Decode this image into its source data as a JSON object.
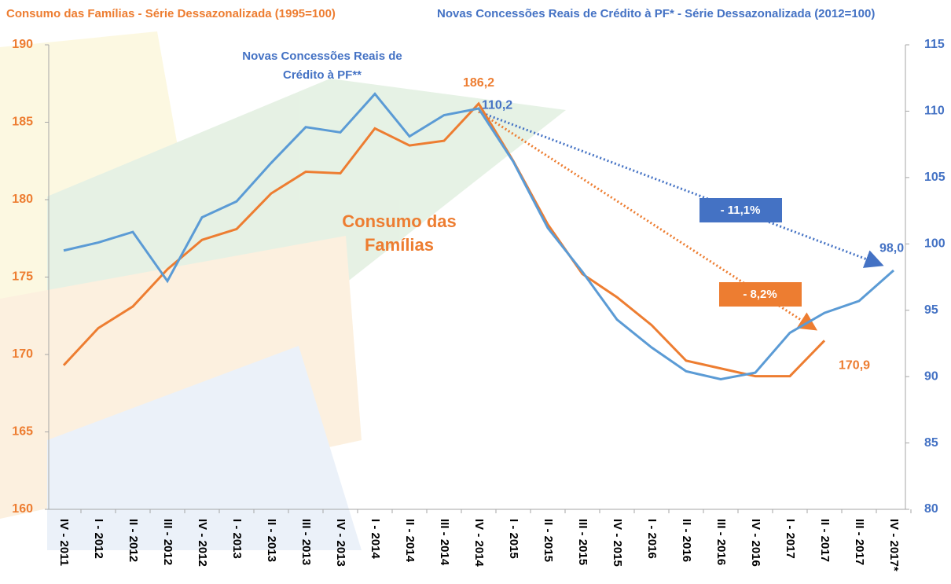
{
  "chart_data": {
    "type": "line",
    "categories": [
      "IV - 2011",
      "I - 2012",
      "II - 2012",
      "III - 2012",
      "IV - 2012",
      "I - 2013",
      "II - 2013",
      "III - 2013",
      "IV - 2013",
      "I - 2014",
      "II - 2014",
      "III - 2014",
      "IV - 2014",
      "I - 2015",
      "II - 2015",
      "III - 2015",
      "IV - 2015",
      "I - 2016",
      "II - 2016",
      "III - 2016",
      "IV - 2016",
      "I - 2017",
      "II - 2017",
      "III - 2017",
      "IV - 2017*"
    ],
    "series": [
      {
        "name": "Consumo das Famílias  - Série Dessazonalizada (1995=100)",
        "color": "#ed7d31",
        "axis": "y",
        "values": [
          169.3,
          171.7,
          173.1,
          175.5,
          177.4,
          178.1,
          180.4,
          181.8,
          181.7,
          184.6,
          183.5,
          183.8,
          186.2,
          182.5,
          178.4,
          175.2,
          173.7,
          171.9,
          169.6,
          169.1,
          168.6,
          168.6,
          170.9,
          null,
          null
        ],
        "value_labels": [
          null,
          null,
          null,
          null,
          null,
          null,
          null,
          null,
          null,
          null,
          null,
          null,
          "186,2",
          null,
          null,
          null,
          null,
          null,
          null,
          null,
          null,
          null,
          "170,9",
          null,
          null
        ]
      },
      {
        "name": "Novas Concessões Reais de Crédito à PF* - Série Dessazonalizada (2012=100)",
        "color": "#5b9bd5",
        "axis": "y2",
        "values": [
          99.5,
          100.1,
          100.9,
          97.2,
          102.0,
          103.2,
          106.1,
          108.8,
          108.4,
          111.3,
          108.1,
          109.7,
          110.2,
          106.2,
          101.2,
          97.9,
          94.3,
          92.2,
          90.4,
          89.8,
          90.3,
          93.3,
          94.8,
          95.7,
          98.0
        ],
        "value_labels": [
          null,
          null,
          null,
          null,
          null,
          null,
          null,
          null,
          null,
          null,
          null,
          null,
          "110,2",
          null,
          null,
          null,
          null,
          null,
          null,
          null,
          null,
          null,
          null,
          null,
          "98,0"
        ]
      }
    ],
    "ylim": [
      160,
      190
    ],
    "yticks": [
      160,
      165,
      170,
      175,
      180,
      185,
      190
    ],
    "ycolor": "#ed7d31",
    "y2lim": [
      80,
      115
    ],
    "y2ticks": [
      80,
      85,
      90,
      95,
      100,
      105,
      110,
      115
    ],
    "y2color": "#4472c4",
    "annotations": [
      {
        "lines": [
          "Novas Concessões Reais de",
          "Crédito à PF**"
        ],
        "color": "#4472c4"
      },
      {
        "lines": [
          "Consumo das",
          "Famílias"
        ],
        "color": "#ed7d31"
      },
      {
        "lines": [
          "- 11,1%"
        ],
        "color": "#4472c4"
      },
      {
        "lines": [
          "- 8,2%"
        ],
        "color": "#ed7d31"
      }
    ]
  }
}
